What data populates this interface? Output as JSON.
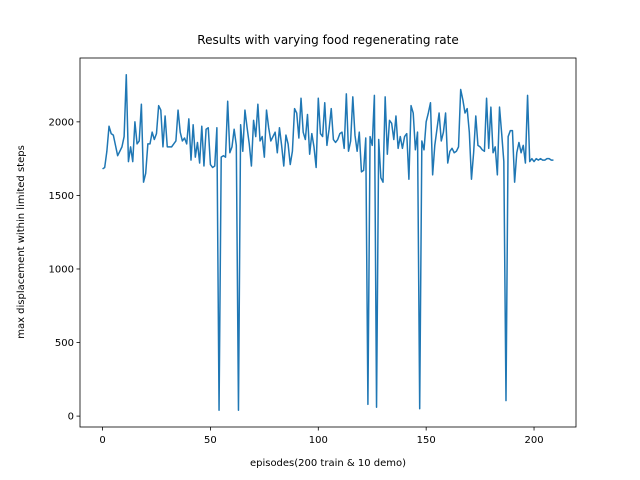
{
  "chart_data": {
    "type": "line",
    "title": "Results with varying food regenerating rate",
    "x_label": "episodes(200 train & 10 demo)",
    "y_label": "max displacement within limited steps",
    "x": [
      0,
      1,
      2,
      3,
      4,
      5,
      6,
      7,
      8,
      9,
      10,
      11,
      12,
      13,
      14,
      15,
      16,
      17,
      18,
      19,
      20,
      21,
      22,
      23,
      24,
      25,
      26,
      27,
      28,
      29,
      30,
      31,
      32,
      33,
      34,
      35,
      36,
      37,
      38,
      39,
      40,
      41,
      42,
      43,
      44,
      45,
      46,
      47,
      48,
      49,
      50,
      51,
      52,
      53,
      54,
      55,
      56,
      57,
      58,
      59,
      60,
      61,
      62,
      63,
      64,
      65,
      66,
      67,
      68,
      69,
      70,
      71,
      72,
      73,
      74,
      75,
      76,
      77,
      78,
      79,
      80,
      81,
      82,
      83,
      84,
      85,
      86,
      87,
      88,
      89,
      90,
      91,
      92,
      93,
      94,
      95,
      96,
      97,
      98,
      99,
      100,
      101,
      102,
      103,
      104,
      105,
      106,
      107,
      108,
      109,
      110,
      111,
      112,
      113,
      114,
      115,
      116,
      117,
      118,
      119,
      120,
      121,
      122,
      123,
      124,
      125,
      126,
      127,
      128,
      129,
      130,
      131,
      132,
      133,
      134,
      135,
      136,
      137,
      138,
      139,
      140,
      141,
      142,
      143,
      144,
      145,
      146,
      147,
      148,
      149,
      150,
      151,
      152,
      153,
      154,
      155,
      156,
      157,
      158,
      159,
      160,
      161,
      162,
      163,
      164,
      165,
      166,
      167,
      168,
      169,
      170,
      171,
      172,
      173,
      174,
      175,
      176,
      177,
      178,
      179,
      180,
      181,
      182,
      183,
      184,
      185,
      186,
      187,
      188,
      189,
      190,
      191,
      192,
      193,
      194,
      195,
      196,
      197,
      198,
      199,
      200,
      201,
      202,
      203,
      204,
      205,
      206,
      207,
      208,
      209
    ],
    "values": [
      1680,
      1690,
      1800,
      1970,
      1920,
      1910,
      1840,
      1770,
      1800,
      1830,
      1900,
      2320,
      1730,
      1830,
      1730,
      2000,
      1850,
      1870,
      2120,
      1590,
      1650,
      1850,
      1850,
      1930,
      1880,
      1920,
      2110,
      2080,
      1830,
      2040,
      1830,
      1830,
      1830,
      1850,
      1870,
      2080,
      1930,
      1870,
      1890,
      1850,
      2020,
      1740,
      1980,
      1760,
      1860,
      1720,
      1970,
      1700,
      1950,
      1960,
      1710,
      1690,
      1700,
      1960,
      40,
      1760,
      1770,
      1760,
      2140,
      1790,
      1830,
      1950,
      1840,
      40,
      1980,
      1800,
      2080,
      1960,
      1850,
      1700,
      2010,
      1900,
      2120,
      1870,
      1900,
      1760,
      2080,
      1960,
      1870,
      1900,
      1930,
      1790,
      1960,
      1840,
      1700,
      1910,
      1850,
      1710,
      1800,
      2090,
      2060,
      1890,
      2160,
      1930,
      1880,
      2050,
      1780,
      1920,
      1830,
      1690,
      2160,
      1920,
      1900,
      2130,
      1840,
      1950,
      2090,
      1880,
      1860,
      1880,
      1920,
      1930,
      1820,
      2190,
      1800,
      1870,
      2170,
      1910,
      1800,
      1930,
      1660,
      1670,
      1890,
      80,
      1900,
      1840,
      2180,
      60,
      1880,
      1620,
      1590,
      2170,
      1780,
      2010,
      1990,
      1880,
      2040,
      1820,
      1900,
      1820,
      1900,
      1920,
      1610,
      2110,
      2060,
      1810,
      1930,
      50,
      1870,
      1810,
      2000,
      2060,
      2130,
      1640,
      1840,
      1950,
      2060,
      1870,
      1930,
      2060,
      1720,
      1800,
      1820,
      1790,
      1800,
      1830,
      2220,
      2150,
      2060,
      2090,
      1930,
      1610,
      1790,
      2040,
      1840,
      1830,
      1810,
      1800,
      2160,
      1820,
      2100,
      1790,
      1830,
      1640,
      2100,
      1920,
      1730,
      105,
      1900,
      1940,
      1940,
      1590,
      1790,
      1860,
      1790,
      1840,
      1720,
      2180,
      1730,
      1750,
      1730,
      1750,
      1740,
      1750,
      1740,
      1740,
      1750,
      1750,
      1740,
      1740
    ],
    "color": "#1f77b4",
    "xlim": [
      -10.45,
      219.45
    ],
    "ylim": [
      -74,
      2434
    ],
    "xticks": [
      0,
      50,
      100,
      150,
      200
    ],
    "yticks": [
      0,
      500,
      1000,
      1500,
      2000
    ],
    "grid": false
  }
}
